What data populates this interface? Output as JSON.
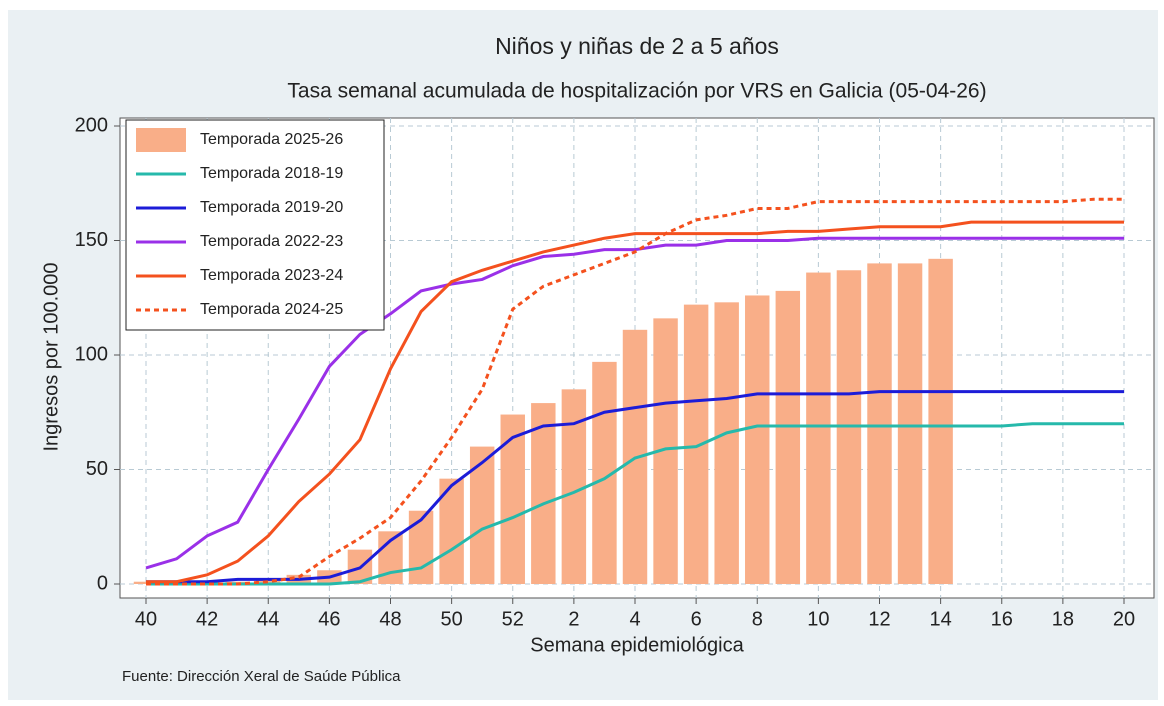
{
  "chart_data": {
    "type": "bar",
    "title": "Niños y niñas de 2 a 5 años",
    "subtitle": "Tasa semanal acumulada de hospitalización por VRS en Galicia (05-04-26)",
    "x_label": "Semana epidemiológica",
    "y_label": "Ingresos por 100.000",
    "source": "Fuente: Dirección Xeral de Saúde Pública",
    "categories": [
      "40",
      null,
      "42",
      null,
      "44",
      null,
      "46",
      null,
      "48",
      null,
      "50",
      null,
      "52",
      null,
      "2",
      null,
      "4",
      null,
      "6",
      null,
      "8",
      null,
      "10",
      null,
      "12",
      null,
      "14",
      null,
      "16",
      null,
      "18",
      null,
      "20"
    ],
    "ylim": [
      0,
      200
    ],
    "yticks": [
      0,
      50,
      100,
      150,
      200
    ],
    "grid": true,
    "legend": "upper left",
    "series": [
      {
        "name": "Temporada 2025-26",
        "type": "bar",
        "color": "#f9ae88",
        "values": [
          1,
          1,
          1,
          1,
          2,
          4,
          6,
          15,
          23,
          32,
          46,
          60,
          74,
          79,
          85,
          97,
          111,
          116,
          122,
          123,
          126,
          128,
          136,
          137,
          140,
          140,
          142,
          null,
          null,
          null,
          null,
          null,
          null
        ]
      },
      {
        "name": "Temporada 2018-19",
        "type": "line",
        "color": "#26b9ab",
        "values": [
          0,
          0,
          0,
          0,
          0,
          0,
          0,
          1,
          5,
          7,
          15,
          24,
          29,
          35,
          40,
          46,
          55,
          59,
          60,
          66,
          69,
          69,
          69,
          69,
          69,
          69,
          69,
          69,
          69,
          70,
          70,
          70,
          70
        ]
      },
      {
        "name": "Temporada 2019-20",
        "type": "line",
        "color": "#1c1cd8",
        "values": [
          1,
          1,
          1,
          2,
          2,
          2,
          3,
          7,
          19,
          28,
          43,
          53,
          64,
          69,
          70,
          75,
          77,
          79,
          80,
          81,
          83,
          83,
          83,
          83,
          84,
          84,
          84,
          84,
          84,
          84,
          84,
          84,
          84
        ]
      },
      {
        "name": "Temporada 2022-23",
        "type": "line",
        "color": "#9a30e8",
        "values": [
          7,
          11,
          21,
          27,
          50,
          72,
          95,
          109,
          118,
          128,
          131,
          133,
          139,
          143,
          144,
          146,
          146,
          148,
          148,
          150,
          150,
          150,
          151,
          151,
          151,
          151,
          151,
          151,
          151,
          151,
          151,
          151,
          151
        ]
      },
      {
        "name": "Temporada 2023-24",
        "type": "line",
        "color": "#f4511e",
        "values": [
          1,
          1,
          4,
          10,
          21,
          36,
          48,
          63,
          94,
          119,
          132,
          137,
          141,
          145,
          148,
          151,
          153,
          153,
          153,
          153,
          153,
          154,
          154,
          155,
          156,
          156,
          156,
          158,
          158,
          158,
          158,
          158,
          158
        ]
      },
      {
        "name": "Temporada 2024-25",
        "type": "line",
        "dash": true,
        "color": "#f4511e",
        "values": [
          0,
          0,
          0,
          0,
          1,
          3,
          12,
          20,
          29,
          45,
          64,
          85,
          120,
          130,
          135,
          140,
          145,
          153,
          159,
          161,
          164,
          164,
          167,
          167,
          167,
          167,
          167,
          167,
          167,
          167,
          167,
          168,
          168
        ]
      }
    ]
  }
}
